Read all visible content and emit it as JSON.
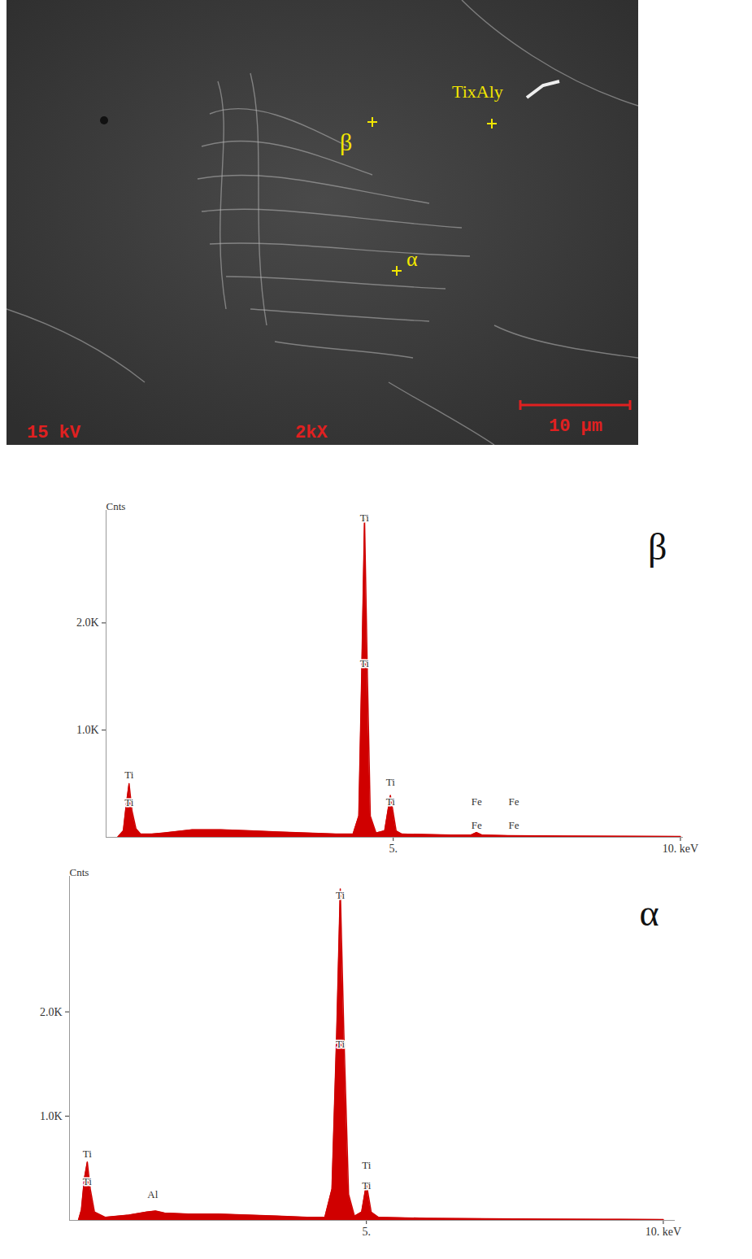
{
  "micrograph": {
    "labels": [
      "β",
      "TixAly",
      "α"
    ],
    "info": [
      "15 kV",
      "2kX"
    ],
    "scale_bar": "10 μm"
  },
  "chart_data": [
    {
      "type": "area",
      "title": "β",
      "y_label": "Cnts",
      "color": "#d00000",
      "x": [
        0.2,
        0.3,
        0.35,
        0.4,
        0.45,
        0.52,
        0.6,
        0.8,
        1.0,
        1.5,
        2.0,
        2.5,
        3.0,
        3.5,
        4.0,
        4.3,
        4.4,
        4.45,
        4.5,
        4.55,
        4.6,
        4.7,
        4.85,
        4.95,
        5.05,
        5.15,
        6.0,
        6.35,
        6.45,
        6.55,
        7.0,
        8.0,
        9.0,
        10.0
      ],
      "values": [
        0,
        60,
        300,
        500,
        250,
        80,
        30,
        30,
        40,
        70,
        70,
        60,
        50,
        40,
        30,
        30,
        200,
        1500,
        2970,
        1500,
        200,
        40,
        60,
        390,
        60,
        30,
        20,
        20,
        45,
        20,
        15,
        12,
        10,
        8
      ],
      "xlim": [
        0,
        10.05
      ],
      "xticks": [
        {
          "value": 5,
          "label": "5."
        },
        {
          "value": 10,
          "label": "10. keV"
        }
      ],
      "ylim": [
        0,
        3050
      ],
      "yticks": [
        {
          "value": 1000,
          "label": "1.0K"
        },
        {
          "value": 2000,
          "label": "2.0K"
        }
      ],
      "annotations": [
        {
          "text": "Ti",
          "x": 0.4,
          "y": 580
        },
        {
          "text": "Ti",
          "x": 0.4,
          "y": 320
        },
        {
          "text": "Ti",
          "x": 4.5,
          "y": 2980
        },
        {
          "text": "Ti",
          "x": 4.5,
          "y": 1620
        },
        {
          "text": "Ti",
          "x": 4.95,
          "y": 510
        },
        {
          "text": "Ti",
          "x": 4.95,
          "y": 330
        },
        {
          "text": "Fe",
          "x": 6.45,
          "y": 330
        },
        {
          "text": "Fe",
          "x": 7.1,
          "y": 330
        },
        {
          "text": "Fe",
          "x": 6.45,
          "y": 110
        },
        {
          "text": "Fe",
          "x": 7.1,
          "y": 110
        }
      ]
    },
    {
      "type": "area",
      "title": "α",
      "y_label": "Cnts",
      "color": "#d00000",
      "x": [
        0.15,
        0.2,
        0.25,
        0.3,
        0.35,
        0.42,
        0.6,
        1.0,
        1.3,
        1.45,
        1.6,
        2.0,
        2.5,
        3.0,
        3.5,
        4.0,
        4.3,
        4.42,
        4.5,
        4.56,
        4.62,
        4.7,
        4.8,
        4.92,
        5.0,
        5.08,
        5.2,
        6.0,
        7.0,
        8.0,
        9.0,
        10.0
      ],
      "values": [
        0,
        100,
        400,
        560,
        300,
        80,
        30,
        50,
        80,
        90,
        70,
        60,
        60,
        50,
        40,
        30,
        30,
        300,
        1800,
        3180,
        1800,
        250,
        40,
        80,
        350,
        80,
        30,
        20,
        15,
        12,
        10,
        8
      ],
      "xlim": [
        0,
        10.2
      ],
      "xticks": [
        {
          "value": 5,
          "label": "5."
        },
        {
          "value": 10,
          "label": "10. keV"
        }
      ],
      "ylim": [
        0,
        3300
      ],
      "yticks": [
        {
          "value": 1000,
          "label": "1.0K"
        },
        {
          "value": 2000,
          "label": "2.0K"
        }
      ],
      "annotations": [
        {
          "text": "Ti",
          "x": 0.3,
          "y": 640
        },
        {
          "text": "Ti",
          "x": 0.3,
          "y": 370
        },
        {
          "text": "Al",
          "x": 1.4,
          "y": 250
        },
        {
          "text": "Ti",
          "x": 4.56,
          "y": 3120
        },
        {
          "text": "Ti",
          "x": 4.56,
          "y": 1690
        },
        {
          "text": "Ti",
          "x": 5.0,
          "y": 530
        },
        {
          "text": "Ti",
          "x": 5.0,
          "y": 330
        }
      ]
    }
  ]
}
